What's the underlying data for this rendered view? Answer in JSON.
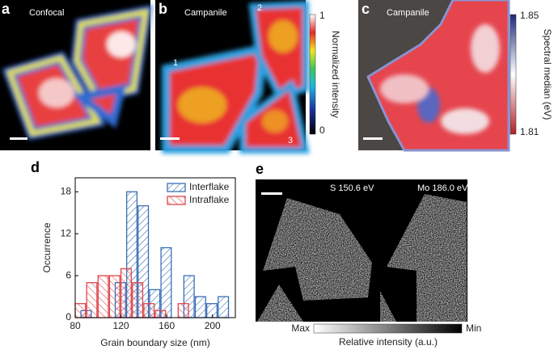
{
  "panels": {
    "a": {
      "letter": "a",
      "label": "Confocal"
    },
    "b": {
      "letter": "b",
      "label": "Campanile",
      "markers": [
        "1",
        "2",
        "3"
      ],
      "colorbar": {
        "top": "1",
        "bottom": "0",
        "title": "Normalized intensity"
      }
    },
    "c": {
      "letter": "c",
      "label": "Campanile",
      "colorbar": {
        "top": "1.85",
        "bottom": "1.81",
        "title": "Spectral median (eV)"
      }
    },
    "d": {
      "letter": "d"
    },
    "e": {
      "letter": "e",
      "left_label": "S 150.6 eV",
      "right_label": "Mo 186.0 eV",
      "colorbar": {
        "left": "Max",
        "right": "Min",
        "title": "Relative intensity (a.u.)"
      }
    }
  },
  "chart_data": {
    "type": "histogram",
    "xlabel": "Grain boundary size (nm)",
    "ylabel": "Occurrence",
    "bins": [
      80,
      90,
      100,
      110,
      120,
      130,
      140,
      150,
      160,
      170,
      180,
      190,
      200,
      210,
      220
    ],
    "series": [
      {
        "name": "Interflake",
        "color": "#3a6fb5",
        "values": [
          1,
          0,
          0,
          5,
          18,
          16,
          4,
          10,
          0,
          6,
          3,
          2,
          3,
          0
        ]
      },
      {
        "name": "Intraflake",
        "color": "#e0454b",
        "values": [
          2,
          5,
          6,
          6,
          7,
          5,
          2,
          1,
          0,
          2,
          0,
          0,
          0,
          0
        ]
      }
    ],
    "xlim": [
      80,
      220
    ],
    "ylim": [
      0,
      20
    ],
    "xticks": [
      80,
      120,
      160,
      200
    ],
    "yticks": [
      0,
      6,
      12,
      18
    ],
    "legend": "upper-right"
  }
}
